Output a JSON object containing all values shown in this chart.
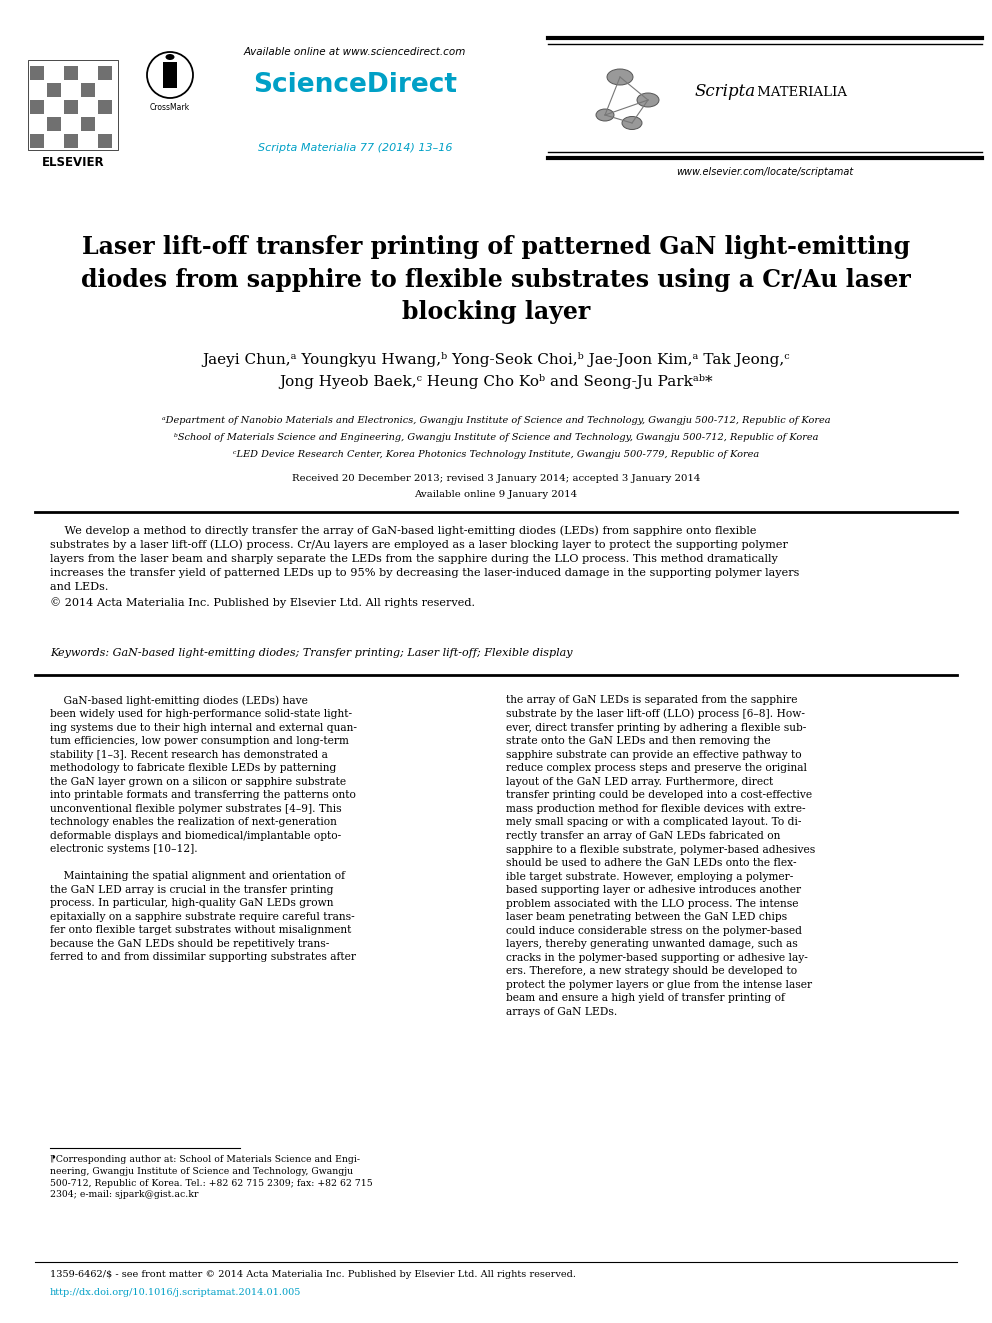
{
  "bg_color": "#ffffff",
  "header": {
    "elsevier_text": "ELSEVIER",
    "available_online": "Available online at www.sciencedirect.com",
    "sciencedirect": "ScienceDirect",
    "journal_ref_color": "#00a0c6",
    "journal_ref": "Scripta Materialia 77 (2014) 13–16",
    "scripta_title": "Scripta MATERIALIA",
    "website": "www.elsevier.com/locate/scriptamat"
  },
  "title": "Laser lift-off transfer printing of patterned GaN light-emitting\ndiodes from sapphire to flexible substrates using a Cr/Au laser\nblocking layer",
  "authors": "Jaeyi Chun,ᵃ Youngkyu Hwang,ᵇ Yong-Seok Choi,ᵇ Jae-Joon Kim,ᵃ Tak Jeong,ᶜ\nJong Hyeob Baek,ᶜ Heung Cho Koᵇ and Seong-Ju Parkᵃᵇ*",
  "affil_a": "ᵃDepartment of Nanobio Materials and Electronics, Gwangju Institute of Science and Technology, Gwangju 500-712, Republic of Korea",
  "affil_b": "ᵇSchool of Materials Science and Engineering, Gwangju Institute of Science and Technology, Gwangju 500-712, Republic of Korea",
  "affil_c": "ᶜLED Device Research Center, Korea Photonics Technology Institute, Gwangju 500-779, Republic of Korea",
  "received": "Received 20 December 2013; revised 3 January 2014; accepted 3 January 2014",
  "available": "Available online 9 January 2014",
  "abstract_text": "    We develop a method to directly transfer the array of GaN-based light-emitting diodes (LEDs) from sapphire onto flexible\nsubstrates by a laser lift-off (LLO) process. Cr/Au layers are employed as a laser blocking layer to protect the supporting polymer\nlayers from the laser beam and sharply separate the LEDs from the sapphire during the LLO process. This method dramatically\nincreases the transfer yield of patterned LEDs up to 95% by decreasing the laser-induced damage in the supporting polymer layers\nand LEDs.\n© 2014 Acta Materialia Inc. Published by Elsevier Ltd. All rights reserved.",
  "keywords": "Keywords: GaN-based light-emitting diodes; Transfer printing; Laser lift-off; Flexible display",
  "body_left": "    GaN-based light-emitting diodes (LEDs) have\nbeen widely used for high-performance solid-state light-\ning systems due to their high internal and external quan-\ntum efficiencies, low power consumption and long-term\nstability [1–3]. Recent research has demonstrated a\nmethodology to fabricate flexible LEDs by patterning\nthe GaN layer grown on a silicon or sapphire substrate\ninto printable formats and transferring the patterns onto\nunconventional flexible polymer substrates [4–9]. This\ntechnology enables the realization of next-generation\ndeformable displays and biomedical/implantable opto-\nelectronic systems [10–12].\n\n    Maintaining the spatial alignment and orientation of\nthe GaN LED array is crucial in the transfer printing\nprocess. In particular, high-quality GaN LEDs grown\nepitaxially on a sapphire substrate require careful trans-\nfer onto flexible target substrates without misalignment\nbecause the GaN LEDs should be repetitively trans-\nferred to and from dissimilar supporting substrates after",
  "body_right": "the array of GaN LEDs is separated from the sapphire\nsubstrate by the laser lift-off (LLO) process [6–8]. How-\never, direct transfer printing by adhering a flexible sub-\nstrate onto the GaN LEDs and then removing the\nsapphire substrate can provide an effective pathway to\nreduce complex process steps and preserve the original\nlayout of the GaN LED array. Furthermore, direct\ntransfer printing could be developed into a cost-effective\nmass production method for flexible devices with extre-\nmely small spacing or with a complicated layout. To di-\nrectly transfer an array of GaN LEDs fabricated on\nsapphire to a flexible substrate, polymer-based adhesives\nshould be used to adhere the GaN LEDs onto the flex-\nible target substrate. However, employing a polymer-\nbased supporting layer or adhesive introduces another\nproblem associated with the LLO process. The intense\nlaser beam penetrating between the GaN LED chips\ncould induce considerable stress on the polymer-based\nlayers, thereby generating unwanted damage, such as\ncracks in the polymer-based supporting or adhesive lay-\ners. Therefore, a new strategy should be developed to\nprotect the polymer layers or glue from the intense laser\nbeam and ensure a high yield of transfer printing of\narrays of GaN LEDs.",
  "footnote": "⁋Corresponding author at: School of Materials Science and Engi-\nneering, Gwangju Institute of Science and Technology, Gwangju\n500-712, Republic of Korea. Tel.: +82 62 715 2309; fax: +82 62 715\n2304; e-mail: sjpark@gist.ac.kr",
  "footer_left": "1359-6462/$ - see front matter © 2014 Acta Materialia Inc. Published by Elsevier Ltd. All rights reserved.",
  "footer_doi_color": "#00a0c6",
  "footer_doi": "http://dx.doi.org/10.1016/j.scriptamat.2014.01.005"
}
